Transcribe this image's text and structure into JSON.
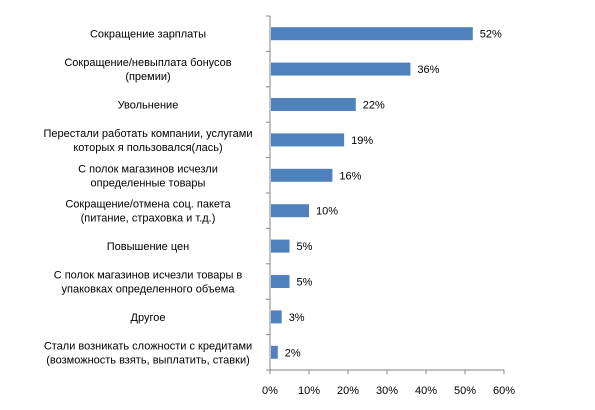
{
  "chart_data": {
    "type": "bar",
    "orientation": "horizontal",
    "categories": [
      [
        "Сокращение зарплаты"
      ],
      [
        "Сокращение/невыплата бонусов",
        "(премии)"
      ],
      [
        "Увольнение"
      ],
      [
        "Перестали работать компании, услугами",
        "которых я пользовался(лась)"
      ],
      [
        "С полок магазинов исчезли",
        "определенные товары"
      ],
      [
        "Сокращение/отмена соц. пакета",
        "(питание, страховка и т.д.)"
      ],
      [
        "Повышение цен"
      ],
      [
        "С полок магазинов исчезли товары в",
        "упаковках определенного объема"
      ],
      [
        "Другое"
      ],
      [
        "Стали возникать сложности с кредитами",
        "(возможность взять, выплатить, ставки)"
      ]
    ],
    "values": [
      52,
      36,
      22,
      19,
      16,
      10,
      5,
      5,
      3,
      2
    ],
    "value_labels": [
      "52%",
      "36%",
      "22%",
      "19%",
      "16%",
      "10%",
      "5%",
      "5%",
      "3%",
      "2%"
    ],
    "xlim": [
      0,
      60
    ],
    "xticks": [
      0,
      10,
      20,
      30,
      40,
      50,
      60
    ],
    "xtick_labels": [
      "0%",
      "10%",
      "20%",
      "30%",
      "40%",
      "50%",
      "60%"
    ],
    "grid": false,
    "legend": "none",
    "bar_color": "#4f81bd",
    "axis_color": "#868686"
  }
}
